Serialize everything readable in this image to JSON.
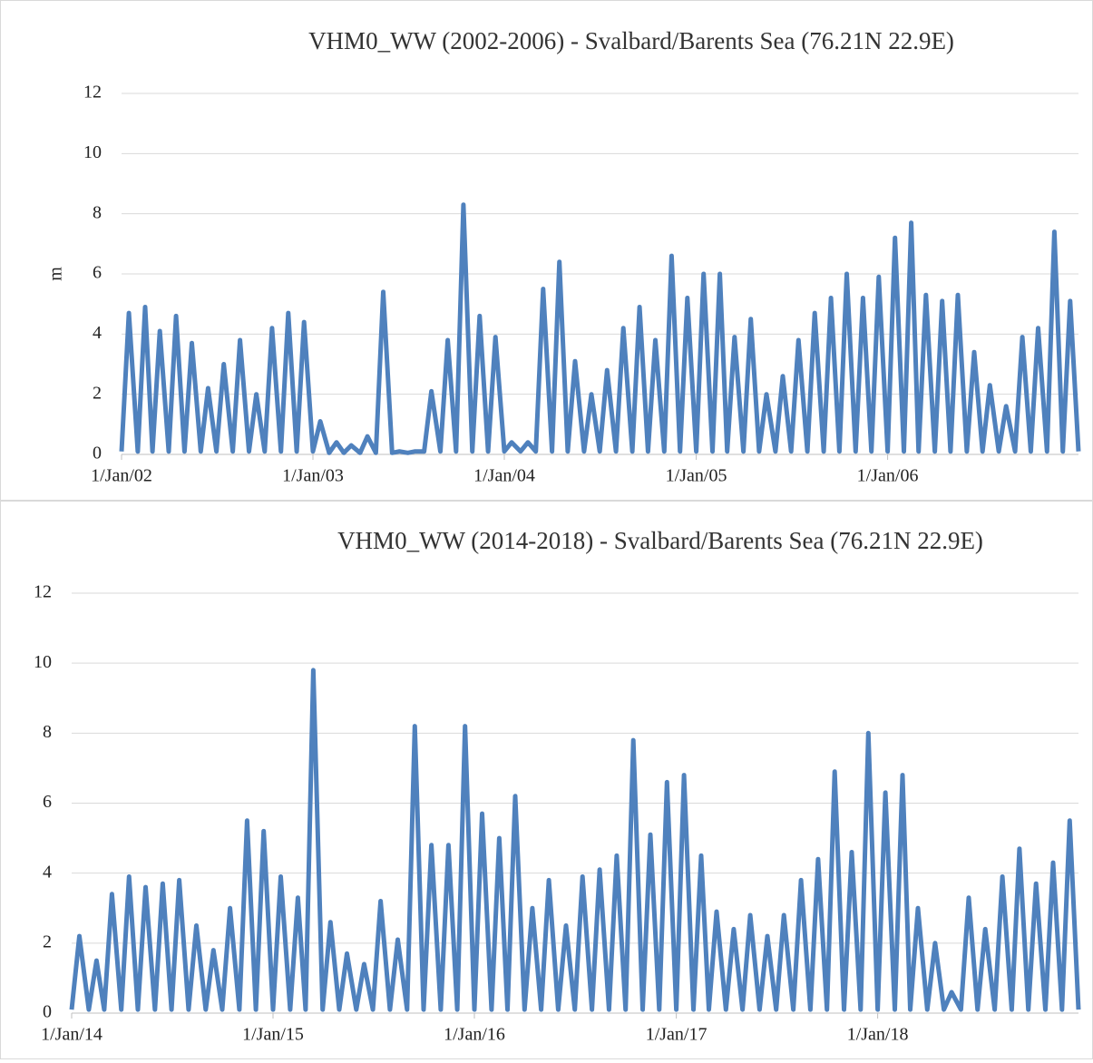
{
  "chart_data": [
    {
      "type": "line",
      "title": "VHM0_WW (2002-2006) - Svalbard/Barents Sea (76.21N 22.9E)",
      "y_label": "m",
      "xlim": [
        "2002-01-01",
        "2006-12-31"
      ],
      "ylim": [
        0,
        12
      ],
      "yticks": [
        0,
        2,
        4,
        6,
        8,
        10,
        12
      ],
      "grid": true,
      "xticks": [
        {
          "value": "2002-01-01",
          "label": "1/Jan/02"
        },
        {
          "value": "2003-01-01",
          "label": "1/Jan/03"
        },
        {
          "value": "2004-01-01",
          "label": "1/Jan/04"
        },
        {
          "value": "2005-01-01",
          "label": "1/Jan/05"
        },
        {
          "value": "2006-01-01",
          "label": "1/Jan/06"
        }
      ],
      "x": [
        "2002-01-01",
        "2002-01-15",
        "2002-02-01",
        "2002-02-15",
        "2002-03-01",
        "2002-03-15",
        "2002-04-01",
        "2002-04-15",
        "2002-05-01",
        "2002-05-15",
        "2002-06-01",
        "2002-06-15",
        "2002-07-01",
        "2002-07-15",
        "2002-08-01",
        "2002-08-15",
        "2002-09-01",
        "2002-09-15",
        "2002-10-01",
        "2002-10-15",
        "2002-11-01",
        "2002-11-15",
        "2002-12-01",
        "2002-12-15",
        "2003-01-01",
        "2003-01-15",
        "2003-02-01",
        "2003-02-15",
        "2003-03-01",
        "2003-03-15",
        "2003-04-01",
        "2003-04-15",
        "2003-05-01",
        "2003-05-15",
        "2003-06-01",
        "2003-06-15",
        "2003-07-01",
        "2003-07-15",
        "2003-08-01",
        "2003-08-15",
        "2003-09-01",
        "2003-09-15",
        "2003-10-01",
        "2003-10-15",
        "2003-11-01",
        "2003-11-15",
        "2003-12-01",
        "2003-12-15",
        "2004-01-01",
        "2004-01-15",
        "2004-02-01",
        "2004-02-15",
        "2004-03-01",
        "2004-03-15",
        "2004-04-01",
        "2004-04-15",
        "2004-05-01",
        "2004-05-15",
        "2004-06-01",
        "2004-06-15",
        "2004-07-01",
        "2004-07-15",
        "2004-08-01",
        "2004-08-15",
        "2004-09-01",
        "2004-09-15",
        "2004-10-01",
        "2004-10-15",
        "2004-11-01",
        "2004-11-15",
        "2004-12-01",
        "2004-12-15",
        "2005-01-01",
        "2005-01-15",
        "2005-02-01",
        "2005-02-15",
        "2005-03-01",
        "2005-03-15",
        "2005-04-01",
        "2005-04-15",
        "2005-05-01",
        "2005-05-15",
        "2005-06-01",
        "2005-06-15",
        "2005-07-01",
        "2005-07-15",
        "2005-08-01",
        "2005-08-15",
        "2005-09-01",
        "2005-09-15",
        "2005-10-01",
        "2005-10-15",
        "2005-11-01",
        "2005-11-15",
        "2005-12-01",
        "2005-12-15",
        "2006-01-01",
        "2006-01-15",
        "2006-02-01",
        "2006-02-15",
        "2006-03-01",
        "2006-03-15",
        "2006-04-01",
        "2006-04-15",
        "2006-05-01",
        "2006-05-15",
        "2006-06-01",
        "2006-06-15",
        "2006-07-01",
        "2006-07-15",
        "2006-08-01",
        "2006-08-15",
        "2006-09-01",
        "2006-09-15",
        "2006-10-01",
        "2006-10-15",
        "2006-11-01",
        "2006-11-15",
        "2006-12-01",
        "2006-12-15",
        "2006-12-31"
      ],
      "series": [
        {
          "color": "#4f81bd",
          "values": [
            0.1,
            4.7,
            0.1,
            4.9,
            0.1,
            4.1,
            0.1,
            4.6,
            0.1,
            3.7,
            0.1,
            2.2,
            0.1,
            3.0,
            0.1,
            3.8,
            0.1,
            2.0,
            0.1,
            4.2,
            0.1,
            4.7,
            0.1,
            4.4,
            0.1,
            1.1,
            0.05,
            0.4,
            0.05,
            0.3,
            0.05,
            0.6,
            0.05,
            5.4,
            0.05,
            0.1,
            0.05,
            0.1,
            0.1,
            2.1,
            0.1,
            3.8,
            0.1,
            8.3,
            0.1,
            4.6,
            0.1,
            3.9,
            0.1,
            0.4,
            0.1,
            0.4,
            0.1,
            5.5,
            0.1,
            6.4,
            0.1,
            3.1,
            0.1,
            2.0,
            0.1,
            2.8,
            0.1,
            4.2,
            0.1,
            4.9,
            0.1,
            3.8,
            0.1,
            6.6,
            0.1,
            5.2,
            0.1,
            6.0,
            0.1,
            6.0,
            0.1,
            3.9,
            0.1,
            4.5,
            0.1,
            2.0,
            0.1,
            2.6,
            0.1,
            3.8,
            0.1,
            4.7,
            0.1,
            5.2,
            0.1,
            6.0,
            0.1,
            5.2,
            0.1,
            5.9,
            0.1,
            7.2,
            0.1,
            7.7,
            0.1,
            5.3,
            0.1,
            5.1,
            0.1,
            5.3,
            0.1,
            3.4,
            0.1,
            2.3,
            0.1,
            1.6,
            0.1,
            3.9,
            0.1,
            4.2,
            0.1,
            7.4,
            0.1,
            5.1,
            0.1
          ]
        }
      ]
    },
    {
      "type": "line",
      "title": "VHM0_WW (2014-2018) - Svalbard/Barents Sea (76.21N 22.9E)",
      "xlim": [
        "2014-01-01",
        "2018-12-31"
      ],
      "ylim": [
        0,
        12
      ],
      "yticks": [
        0,
        2,
        4,
        6,
        8,
        10,
        12
      ],
      "grid": true,
      "xticks": [
        {
          "value": "2014-01-01",
          "label": "1/Jan/14"
        },
        {
          "value": "2015-01-01",
          "label": "1/Jan/15"
        },
        {
          "value": "2016-01-01",
          "label": "1/Jan/16"
        },
        {
          "value": "2017-01-01",
          "label": "1/Jan/17"
        },
        {
          "value": "2018-01-01",
          "label": "1/Jan/18"
        }
      ],
      "x": [
        "2014-01-01",
        "2014-01-15",
        "2014-02-01",
        "2014-02-15",
        "2014-03-01",
        "2014-03-15",
        "2014-04-01",
        "2014-04-15",
        "2014-05-01",
        "2014-05-15",
        "2014-06-01",
        "2014-06-15",
        "2014-07-01",
        "2014-07-15",
        "2014-08-01",
        "2014-08-15",
        "2014-09-01",
        "2014-09-15",
        "2014-10-01",
        "2014-10-15",
        "2014-11-01",
        "2014-11-15",
        "2014-12-01",
        "2014-12-15",
        "2015-01-01",
        "2015-01-15",
        "2015-02-01",
        "2015-02-15",
        "2015-03-01",
        "2015-03-15",
        "2015-04-01",
        "2015-04-15",
        "2015-05-01",
        "2015-05-15",
        "2015-06-01",
        "2015-06-15",
        "2015-07-01",
        "2015-07-15",
        "2015-08-01",
        "2015-08-15",
        "2015-09-01",
        "2015-09-15",
        "2015-10-01",
        "2015-10-15",
        "2015-11-01",
        "2015-11-15",
        "2015-12-01",
        "2015-12-15",
        "2016-01-01",
        "2016-01-15",
        "2016-02-01",
        "2016-02-15",
        "2016-03-01",
        "2016-03-15",
        "2016-04-01",
        "2016-04-15",
        "2016-05-01",
        "2016-05-15",
        "2016-06-01",
        "2016-06-15",
        "2016-07-01",
        "2016-07-15",
        "2016-08-01",
        "2016-08-15",
        "2016-09-01",
        "2016-09-15",
        "2016-10-01",
        "2016-10-15",
        "2016-11-01",
        "2016-11-15",
        "2016-12-01",
        "2016-12-15",
        "2017-01-01",
        "2017-01-15",
        "2017-02-01",
        "2017-02-15",
        "2017-03-01",
        "2017-03-15",
        "2017-04-01",
        "2017-04-15",
        "2017-05-01",
        "2017-05-15",
        "2017-06-01",
        "2017-06-15",
        "2017-07-01",
        "2017-07-15",
        "2017-08-01",
        "2017-08-15",
        "2017-09-01",
        "2017-09-15",
        "2017-10-01",
        "2017-10-15",
        "2017-11-01",
        "2017-11-15",
        "2017-12-01",
        "2017-12-15",
        "2018-01-01",
        "2018-01-15",
        "2018-02-01",
        "2018-02-15",
        "2018-03-01",
        "2018-03-15",
        "2018-04-01",
        "2018-04-15",
        "2018-05-01",
        "2018-05-15",
        "2018-06-01",
        "2018-06-15",
        "2018-07-01",
        "2018-07-15",
        "2018-08-01",
        "2018-08-15",
        "2018-09-01",
        "2018-09-15",
        "2018-10-01",
        "2018-10-15",
        "2018-11-01",
        "2018-11-15",
        "2018-12-01",
        "2018-12-15",
        "2018-12-31"
      ],
      "series": [
        {
          "color": "#4f81bd",
          "values": [
            0.1,
            2.2,
            0.1,
            1.5,
            0.1,
            3.4,
            0.1,
            3.9,
            0.1,
            3.6,
            0.1,
            3.7,
            0.1,
            3.8,
            0.1,
            2.5,
            0.1,
            1.8,
            0.1,
            3.0,
            0.1,
            5.5,
            0.1,
            5.2,
            0.1,
            3.9,
            0.1,
            3.3,
            0.1,
            9.8,
            0.1,
            2.6,
            0.1,
            1.7,
            0.1,
            1.4,
            0.1,
            3.2,
            0.1,
            2.1,
            0.1,
            8.2,
            0.1,
            4.8,
            0.1,
            4.8,
            0.1,
            8.2,
            0.1,
            5.7,
            0.1,
            5.0,
            0.1,
            6.2,
            0.1,
            3.0,
            0.1,
            3.8,
            0.1,
            2.5,
            0.1,
            3.9,
            0.1,
            4.1,
            0.1,
            4.5,
            0.1,
            7.8,
            0.1,
            5.1,
            0.1,
            6.6,
            0.1,
            6.8,
            0.1,
            4.5,
            0.1,
            2.9,
            0.1,
            2.4,
            0.1,
            2.8,
            0.1,
            2.2,
            0.1,
            2.8,
            0.1,
            3.8,
            0.1,
            4.4,
            0.1,
            6.9,
            0.1,
            4.6,
            0.1,
            8.0,
            0.1,
            6.3,
            0.1,
            6.8,
            0.1,
            3.0,
            0.1,
            2.0,
            0.1,
            0.6,
            0.1,
            3.3,
            0.1,
            2.4,
            0.1,
            3.9,
            0.1,
            4.7,
            0.1,
            3.7,
            0.1,
            4.3,
            0.1,
            5.5,
            0.1
          ]
        }
      ]
    }
  ]
}
